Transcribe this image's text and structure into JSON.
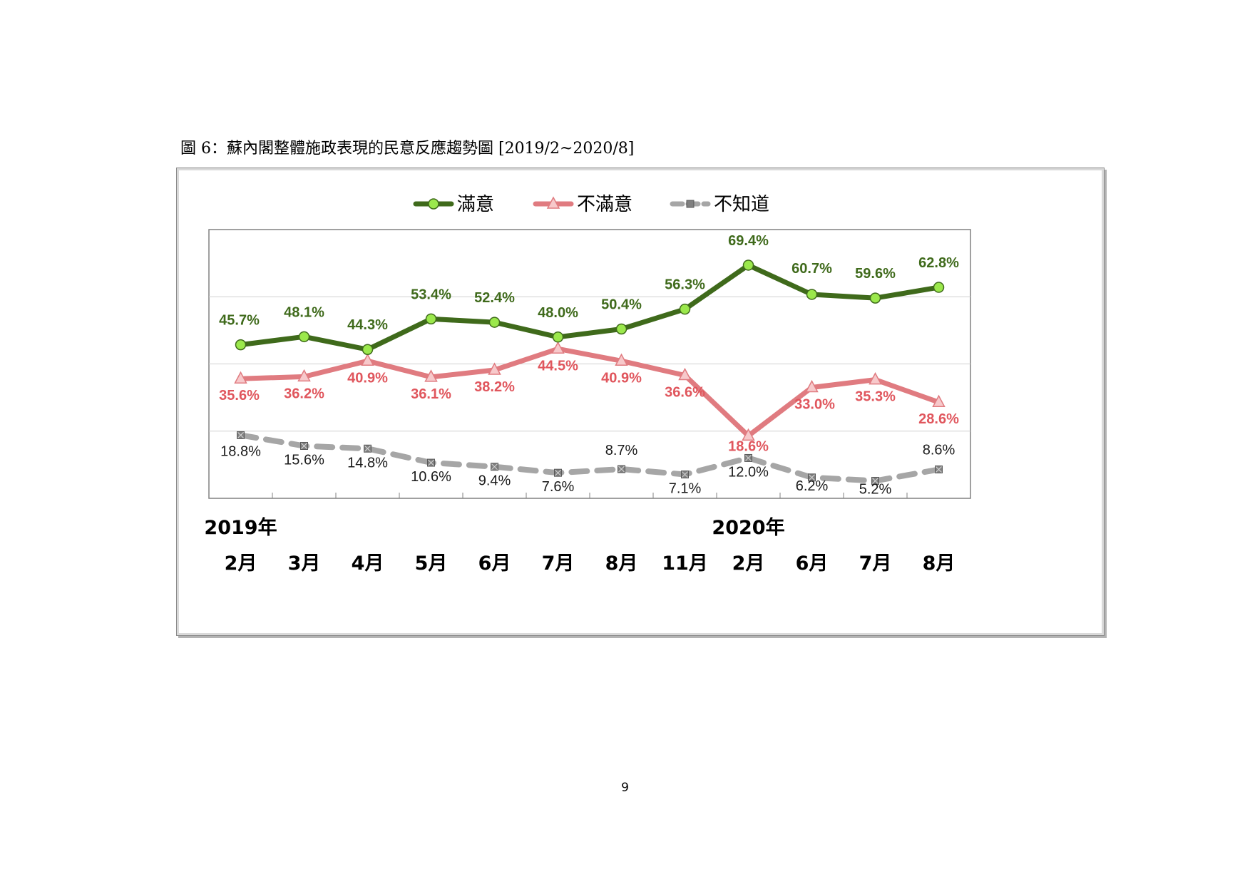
{
  "caption": "圖 6：蘇內閣整體施政表現的民意反應趨勢圖  [2019/2~2020/8]",
  "page_number": "9",
  "chart_data": {
    "type": "line",
    "title": "",
    "categories": [
      "2月",
      "3月",
      "4月",
      "5月",
      "6月",
      "7月",
      "8月",
      "11月",
      "2月",
      "6月",
      "7月",
      "8月"
    ],
    "year_labels": [
      {
        "label": "2019年",
        "category_index": 0
      },
      {
        "label": "2020年",
        "category_index": 8
      }
    ],
    "ylim": [
      0,
      80
    ],
    "gridlines": [
      20,
      40,
      60
    ],
    "legend_position": "top-center",
    "series": [
      {
        "name": "滿意",
        "color": "#3f6a1b",
        "marker": "circle",
        "marker_fill": "#9be84c",
        "line_style": "solid",
        "values": [
          45.7,
          48.1,
          44.3,
          53.4,
          52.4,
          48.0,
          50.4,
          56.3,
          69.4,
          60.7,
          59.6,
          62.8
        ],
        "labels": [
          "45.7%",
          "48.1%",
          "44.3%",
          "53.4%",
          "52.4%",
          "48.0%",
          "50.4%",
          "56.3%",
          "69.4%",
          "60.7%",
          "59.6%",
          "62.8%"
        ],
        "label_color": "#3f6a1b"
      },
      {
        "name": "不滿意",
        "color": "#e07b80",
        "marker": "triangle",
        "marker_fill": "#f7c9cb",
        "line_style": "solid",
        "values": [
          35.6,
          36.2,
          40.9,
          36.1,
          38.2,
          44.5,
          40.9,
          36.6,
          18.6,
          33.0,
          35.3,
          28.6
        ],
        "labels": [
          "35.6%",
          "36.2%",
          "40.9%",
          "36.1%",
          "38.2%",
          "44.5%",
          "40.9%",
          "36.6%",
          "18.6%",
          "33.0%",
          "35.3%",
          "28.6%"
        ],
        "label_color": "#e0565d"
      },
      {
        "name": "不知道",
        "color": "#a6a6a6",
        "marker": "x-square",
        "marker_fill": "#808080",
        "line_style": "dashed",
        "values": [
          18.8,
          15.6,
          14.8,
          10.6,
          9.4,
          7.6,
          8.7,
          7.1,
          12.0,
          6.2,
          5.2,
          8.6
        ],
        "labels": [
          "18.8%",
          "15.6%",
          "14.8%",
          "10.6%",
          "9.4%",
          "7.6%",
          "8.7%",
          "7.1%",
          "12.0%",
          "6.2%",
          "5.2%",
          "8.6%"
        ],
        "label_color": "#1a1a1a"
      }
    ]
  }
}
